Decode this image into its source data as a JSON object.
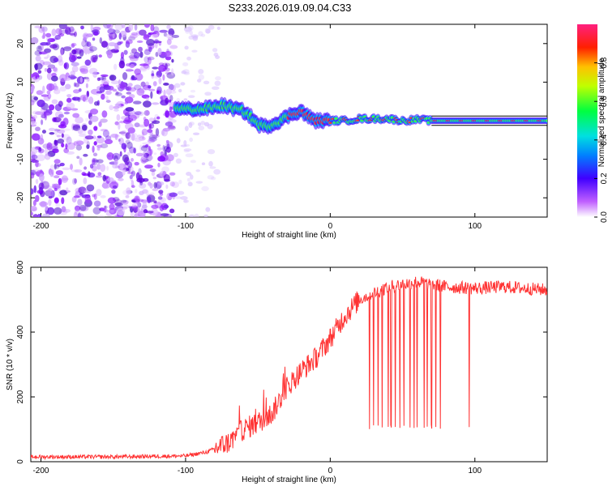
{
  "title": "S233.2026.019.09.04.C33",
  "chart_data": [
    {
      "type": "heatmap",
      "xlabel": "Height of straight line (km)",
      "ylabel": "Frequency (Hz)",
      "xlim": [
        -207,
        150
      ],
      "ylim": [
        -25,
        25
      ],
      "xticks": [
        -200,
        -100,
        0,
        100
      ],
      "yticks": [
        -20,
        -10,
        0,
        10,
        20
      ],
      "ridge": {
        "description": "strong spectral peak line",
        "x": [
          -107,
          -100,
          -90,
          -80,
          -75,
          -70,
          -65,
          -60,
          -55,
          -50,
          -45,
          -40,
          -35,
          -30,
          -25,
          -20,
          -15,
          -10,
          -5,
          0,
          10,
          20,
          30,
          40,
          50,
          60,
          70,
          80,
          100,
          120,
          150
        ],
        "y": [
          3.5,
          3,
          3,
          3.5,
          4,
          3.5,
          3,
          2.5,
          1,
          -1,
          -1.5,
          -1,
          0,
          1,
          2,
          2.5,
          1,
          0,
          0,
          0,
          0,
          0.5,
          0.5,
          0.5,
          0,
          0.3,
          0,
          0,
          0,
          0,
          0
        ]
      },
      "colorbar": {
        "label": "Normalized spectral amplitude",
        "ticks": [
          "0.0",
          "0.2",
          "0.4",
          "0.6",
          "0.8"
        ],
        "range": [
          0,
          1
        ]
      }
    },
    {
      "type": "line",
      "xlabel": "Height of straight line (km)",
      "ylabel": "SNR (10 * v/v)",
      "xlim": [
        -207,
        150
      ],
      "ylim": [
        0,
        600
      ],
      "xticks": [
        -200,
        -100,
        0,
        100
      ],
      "yticks": [
        0,
        200,
        400,
        600
      ],
      "color": "#ff3333",
      "trend": {
        "x": [
          -207,
          -150,
          -100,
          -85,
          -70,
          -60,
          -50,
          -40,
          -30,
          -20,
          -10,
          0,
          10,
          20,
          30,
          40,
          60,
          80,
          100,
          120,
          150
        ],
        "y": [
          15,
          15,
          18,
          30,
          60,
          100,
          120,
          150,
          230,
          280,
          320,
          380,
          450,
          500,
          520,
          540,
          555,
          540,
          535,
          540,
          530
        ]
      },
      "dropouts": [
        27,
        30,
        33,
        36,
        40,
        42,
        45,
        48,
        51,
        55,
        58,
        60,
        65,
        67,
        70,
        73,
        76,
        96
      ],
      "dropout_min": 100
    }
  ]
}
